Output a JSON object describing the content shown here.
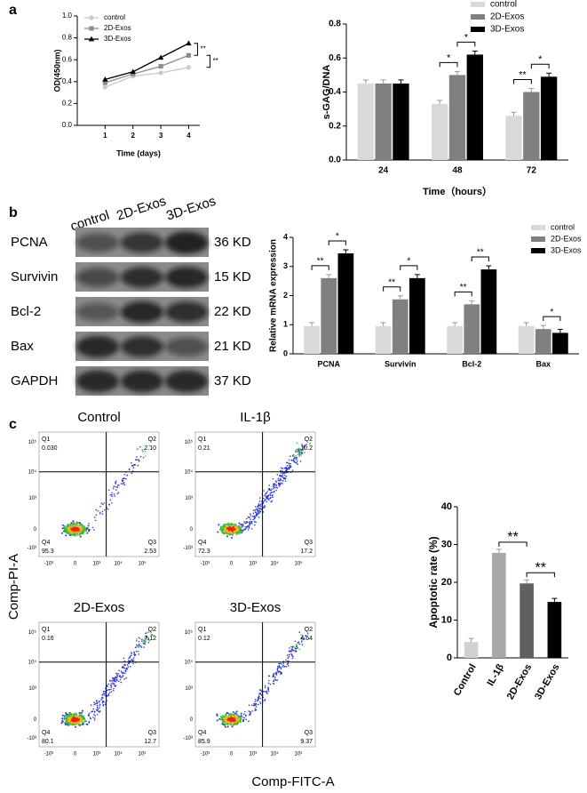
{
  "panels": [
    "a",
    "b",
    "c"
  ],
  "chart_data": [
    {
      "type": "line",
      "xlabel": "Time (days)",
      "ylabel": "OD(450nm)",
      "x": [
        1,
        2,
        3,
        4
      ],
      "xlim": [
        0,
        4.4
      ],
      "xticks": [
        1,
        2,
        3,
        4
      ],
      "ylim": [
        0,
        1
      ],
      "yticks": [
        {
          "value": 0,
          "label": "0.0"
        },
        0.2,
        0.4,
        0.6,
        0.8,
        {
          "value": 1,
          "label": "1.0"
        }
      ],
      "series": [
        {
          "name": "control",
          "color": "#c8c8c8",
          "marker": "circle",
          "values": [
            0.35,
            0.45,
            0.48,
            0.53
          ]
        },
        {
          "name": "2D-Exos",
          "color": "#8c8c8c",
          "marker": "square",
          "values": [
            0.39,
            0.47,
            0.54,
            0.64
          ]
        },
        {
          "name": "3D-Exos",
          "color": "#000000",
          "marker": "triangle",
          "values": [
            0.42,
            0.49,
            0.62,
            0.75
          ]
        }
      ],
      "annotations": [
        "**",
        "**"
      ]
    },
    {
      "type": "bar",
      "xlabel": "Time（hours）",
      "ylabel": "s-GAG/DNA",
      "categories": [
        "24",
        "48",
        "72"
      ],
      "ylim": [
        0,
        0.8
      ],
      "yticks": [
        {
          "value": 0,
          "label": "0.0"
        },
        0.2,
        0.4,
        0.6,
        0.8
      ],
      "series": [
        {
          "name": "control",
          "color": "#d9d9d9",
          "values": [
            0.45,
            0.33,
            0.26
          ]
        },
        {
          "name": "2D-Exos",
          "color": "#808080",
          "values": [
            0.45,
            0.5,
            0.4
          ]
        },
        {
          "name": "3D-Exos",
          "color": "#000000",
          "values": [
            0.45,
            0.62,
            0.49
          ]
        }
      ],
      "annotations": [
        "*",
        "*",
        "**",
        "*"
      ]
    },
    {
      "type": "bar",
      "ylabel": "Relative mRNA expression",
      "categories": [
        "PCNA",
        "Survivin",
        "Bcl-2",
        "Bax"
      ],
      "ylim": [
        0,
        4
      ],
      "yticks": [
        0,
        1,
        2,
        3,
        4
      ],
      "series": [
        {
          "name": "control",
          "color": "#d9d9d9",
          "values": [
            0.95,
            0.95,
            0.95,
            0.95
          ]
        },
        {
          "name": "2D-Exos",
          "color": "#808080",
          "values": [
            2.6,
            1.87,
            1.7,
            0.85
          ]
        },
        {
          "name": "3D-Exos",
          "color": "#000000",
          "values": [
            3.45,
            2.6,
            2.9,
            0.72
          ]
        }
      ],
      "annotations": [
        "**",
        "*",
        "**",
        "*",
        "**",
        "**",
        "*"
      ]
    },
    {
      "type": "bar",
      "ylabel": "Apoptotic rate (%)",
      "categories": [
        "Control",
        "IL-1β",
        "2D-Exos",
        "3D-Exos"
      ],
      "values": [
        4.2,
        27.8,
        19.7,
        14.8
      ],
      "colors": [
        "#d0d0d0",
        "#a8a8a8",
        "#606060",
        "#000000"
      ],
      "ylim": [
        0,
        40
      ],
      "yticks": [
        0,
        10,
        20,
        30,
        40
      ],
      "annotations": [
        "**",
        "**"
      ]
    }
  ],
  "western_blot": {
    "lanes": [
      "control",
      "2D-Exos",
      "3D-Exos"
    ],
    "rows": [
      {
        "protein": "PCNA",
        "size": "36 KD"
      },
      {
        "protein": "Survivin",
        "size": "15 KD"
      },
      {
        "protein": "Bcl-2",
        "size": "22 KD"
      },
      {
        "protein": "Bax",
        "size": "21 KD"
      },
      {
        "protein": "GAPDH",
        "size": "37 KD"
      }
    ]
  },
  "flow": {
    "ylabel": "Comp-PI-A",
    "xlabel": "Comp-FITC-A",
    "ticks": [
      "-10³",
      "0",
      "10³",
      "10⁴",
      "10⁵"
    ],
    "plots": [
      {
        "title": "Control",
        "quadrants": [
          {
            "label": "Q1",
            "value": "0.030"
          },
          {
            "label": "Q2",
            "value": "2.10"
          },
          {
            "label": "Q3",
            "value": "2.53"
          },
          {
            "label": "Q4",
            "value": "95.3"
          }
        ]
      },
      {
        "title": "IL-1β",
        "quadrants": [
          {
            "label": "Q1",
            "value": "0.21"
          },
          {
            "label": "Q2",
            "value": "10.2"
          },
          {
            "label": "Q3",
            "value": "17.2"
          },
          {
            "label": "Q4",
            "value": "72.3"
          }
        ]
      },
      {
        "title": "2D-Exos",
        "quadrants": [
          {
            "label": "Q1",
            "value": "0.16"
          },
          {
            "label": "Q2",
            "value": "7.12"
          },
          {
            "label": "Q3",
            "value": "12.7"
          },
          {
            "label": "Q4",
            "value": "80.1"
          }
        ]
      },
      {
        "title": "3D-Exos",
        "quadrants": [
          {
            "label": "Q1",
            "value": "0.12"
          },
          {
            "label": "Q2",
            "value": "4.64"
          },
          {
            "label": "Q3",
            "value": "9.37"
          },
          {
            "label": "Q4",
            "value": "85.9"
          }
        ]
      }
    ]
  }
}
